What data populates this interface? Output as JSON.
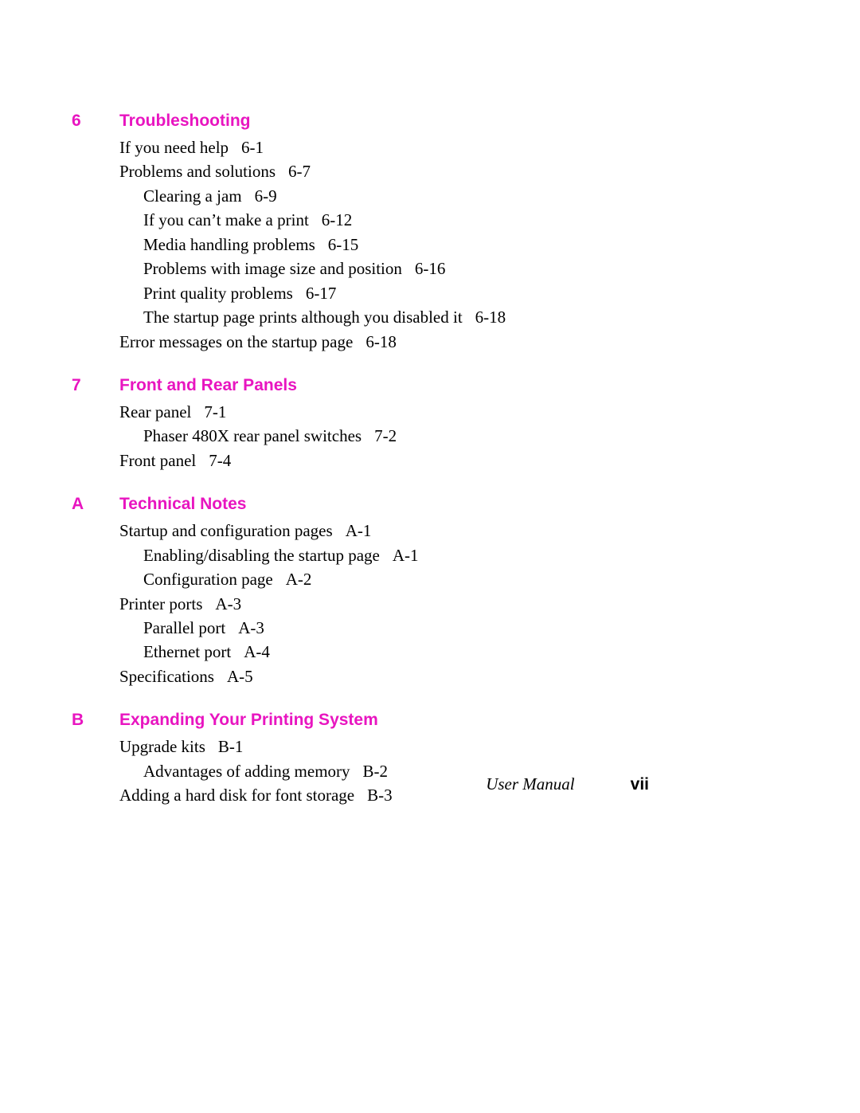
{
  "colors": {
    "heading": "#e815c0",
    "body": "#000000",
    "background": "#ffffff"
  },
  "typography": {
    "heading_font": "Arial",
    "heading_weight": "bold",
    "heading_size_pt": 16,
    "body_font": "Palatino",
    "body_size_pt": 16,
    "line_height": 1.45
  },
  "sections": [
    {
      "num": "6",
      "title": "Troubleshooting",
      "entries": [
        {
          "level": 1,
          "text": "If you need help",
          "page": "6-1"
        },
        {
          "level": 1,
          "text": "Problems and solutions",
          "page": "6-7"
        },
        {
          "level": 2,
          "text": "Clearing a jam",
          "page": "6-9"
        },
        {
          "level": 2,
          "text": "If you can’t make a print",
          "page": "6-12"
        },
        {
          "level": 2,
          "text": "Media handling problems",
          "page": "6-15"
        },
        {
          "level": 2,
          "text": "Problems with image size and position",
          "page": "6-16"
        },
        {
          "level": 2,
          "text": "Print quality problems",
          "page": "6-17"
        },
        {
          "level": 2,
          "text": "The startup page prints although you disabled it",
          "page": "6-18"
        },
        {
          "level": 1,
          "text": "Error messages on the startup page",
          "page": "6-18"
        }
      ]
    },
    {
      "num": "7",
      "title": "Front and Rear Panels",
      "entries": [
        {
          "level": 1,
          "text": "Rear panel",
          "page": "7-1"
        },
        {
          "level": 2,
          "text": "Phaser 480X rear panel switches",
          "page": "7-2"
        },
        {
          "level": 1,
          "text": "Front panel",
          "page": "7-4"
        }
      ]
    },
    {
      "num": "A",
      "title": "Technical Notes",
      "entries": [
        {
          "level": 1,
          "text": "Startup and configuration pages",
          "page": "A-1"
        },
        {
          "level": 2,
          "text": "Enabling/disabling the startup page",
          "page": "A-1"
        },
        {
          "level": 2,
          "text": "Configuration page",
          "page": "A-2"
        },
        {
          "level": 1,
          "text": "Printer ports",
          "page": "A-3"
        },
        {
          "level": 2,
          "text": "Parallel port",
          "page": "A-3"
        },
        {
          "level": 2,
          "text": "Ethernet port",
          "page": "A-4"
        },
        {
          "level": 1,
          "text": "Specifications",
          "page": "A-5"
        }
      ]
    },
    {
      "num": "B",
      "title": "Expanding Your Printing System",
      "entries": [
        {
          "level": 1,
          "text": "Upgrade kits",
          "page": "B-1"
        },
        {
          "level": 2,
          "text": "Advantages of adding memory",
          "page": "B-2"
        },
        {
          "level": 1,
          "text": "Adding a hard disk for font storage",
          "page": "B-3"
        }
      ]
    }
  ],
  "footer": {
    "label": "User Manual",
    "page_roman": "vii"
  }
}
